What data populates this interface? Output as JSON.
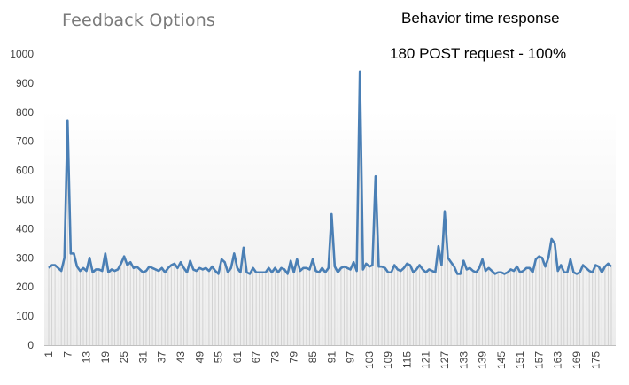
{
  "chart_data": {
    "type": "line",
    "title": "Feedback Options",
    "subtitle_lines": [
      "Behavior time response",
      "180 POST request - 100%"
    ],
    "xlabel": "",
    "ylabel": "",
    "ylim": [
      0,
      1000
    ],
    "y_ticks": [
      0,
      100,
      200,
      300,
      400,
      500,
      600,
      700,
      800,
      900,
      1000
    ],
    "x_tick_labels": [
      "1",
      "7",
      "13",
      "19",
      "25",
      "31",
      "37",
      "43",
      "49",
      "55",
      "61",
      "67",
      "73",
      "79",
      "85",
      "91",
      "97",
      "103",
      "109",
      "115",
      "121",
      "127",
      "133",
      "139",
      "145",
      "151",
      "157",
      "163",
      "169",
      "175"
    ],
    "x": [
      1,
      2,
      3,
      4,
      5,
      6,
      7,
      8,
      9,
      10,
      11,
      12,
      13,
      14,
      15,
      16,
      17,
      18,
      19,
      20,
      21,
      22,
      23,
      24,
      25,
      26,
      27,
      28,
      29,
      30,
      31,
      32,
      33,
      34,
      35,
      36,
      37,
      38,
      39,
      40,
      41,
      42,
      43,
      44,
      45,
      46,
      47,
      48,
      49,
      50,
      51,
      52,
      53,
      54,
      55,
      56,
      57,
      58,
      59,
      60,
      61,
      62,
      63,
      64,
      65,
      66,
      67,
      68,
      69,
      70,
      71,
      72,
      73,
      74,
      75,
      76,
      77,
      78,
      79,
      80,
      81,
      82,
      83,
      84,
      85,
      86,
      87,
      88,
      89,
      90,
      91,
      92,
      93,
      94,
      95,
      96,
      97,
      98,
      99,
      100,
      101,
      102,
      103,
      104,
      105,
      106,
      107,
      108,
      109,
      110,
      111,
      112,
      113,
      114,
      115,
      116,
      117,
      118,
      119,
      120,
      121,
      122,
      123,
      124,
      125,
      126,
      127,
      128,
      129,
      130,
      131,
      132,
      133,
      134,
      135,
      136,
      137,
      138,
      139,
      140,
      141,
      142,
      143,
      144,
      145,
      146,
      147,
      148,
      149,
      150,
      151,
      152,
      153,
      154,
      155,
      156,
      157,
      158,
      159,
      160,
      161,
      162,
      163,
      164,
      165,
      166,
      167,
      168,
      169,
      170,
      171,
      172,
      173,
      174,
      175,
      176,
      177,
      178,
      179,
      180
    ],
    "series": [
      {
        "name": "",
        "color": "#4a7fb5",
        "values": [
          265,
          275,
          275,
          265,
          255,
          300,
          770,
          315,
          315,
          270,
          255,
          265,
          255,
          300,
          250,
          260,
          260,
          255,
          315,
          250,
          260,
          255,
          260,
          280,
          305,
          275,
          285,
          265,
          270,
          260,
          250,
          255,
          270,
          265,
          260,
          255,
          265,
          250,
          265,
          275,
          280,
          265,
          285,
          265,
          250,
          290,
          260,
          255,
          265,
          260,
          265,
          255,
          270,
          255,
          245,
          295,
          285,
          250,
          265,
          315,
          265,
          250,
          335,
          250,
          245,
          265,
          250,
          250,
          250,
          250,
          265,
          250,
          265,
          250,
          265,
          260,
          245,
          290,
          250,
          295,
          255,
          265,
          265,
          260,
          295,
          255,
          250,
          265,
          250,
          265,
          450,
          270,
          250,
          265,
          270,
          265,
          260,
          285,
          255,
          940,
          260,
          280,
          270,
          275,
          580,
          270,
          270,
          265,
          250,
          250,
          275,
          260,
          255,
          265,
          280,
          275,
          250,
          260,
          275,
          260,
          250,
          260,
          255,
          250,
          340,
          275,
          460,
          300,
          285,
          270,
          245,
          245,
          290,
          260,
          265,
          255,
          250,
          265,
          295,
          255,
          265,
          255,
          245,
          250,
          250,
          245,
          250,
          260,
          255,
          270,
          250,
          255,
          265,
          265,
          250,
          295,
          305,
          300,
          270,
          300,
          365,
          350,
          255,
          275,
          250,
          250,
          295,
          250,
          245,
          250,
          275,
          265,
          255,
          250,
          275,
          270,
          250,
          270,
          280,
          270
        ]
      }
    ],
    "fill": "vertical drop lines from each point to the x-axis (light gray)",
    "grid": false,
    "legend": "none"
  }
}
